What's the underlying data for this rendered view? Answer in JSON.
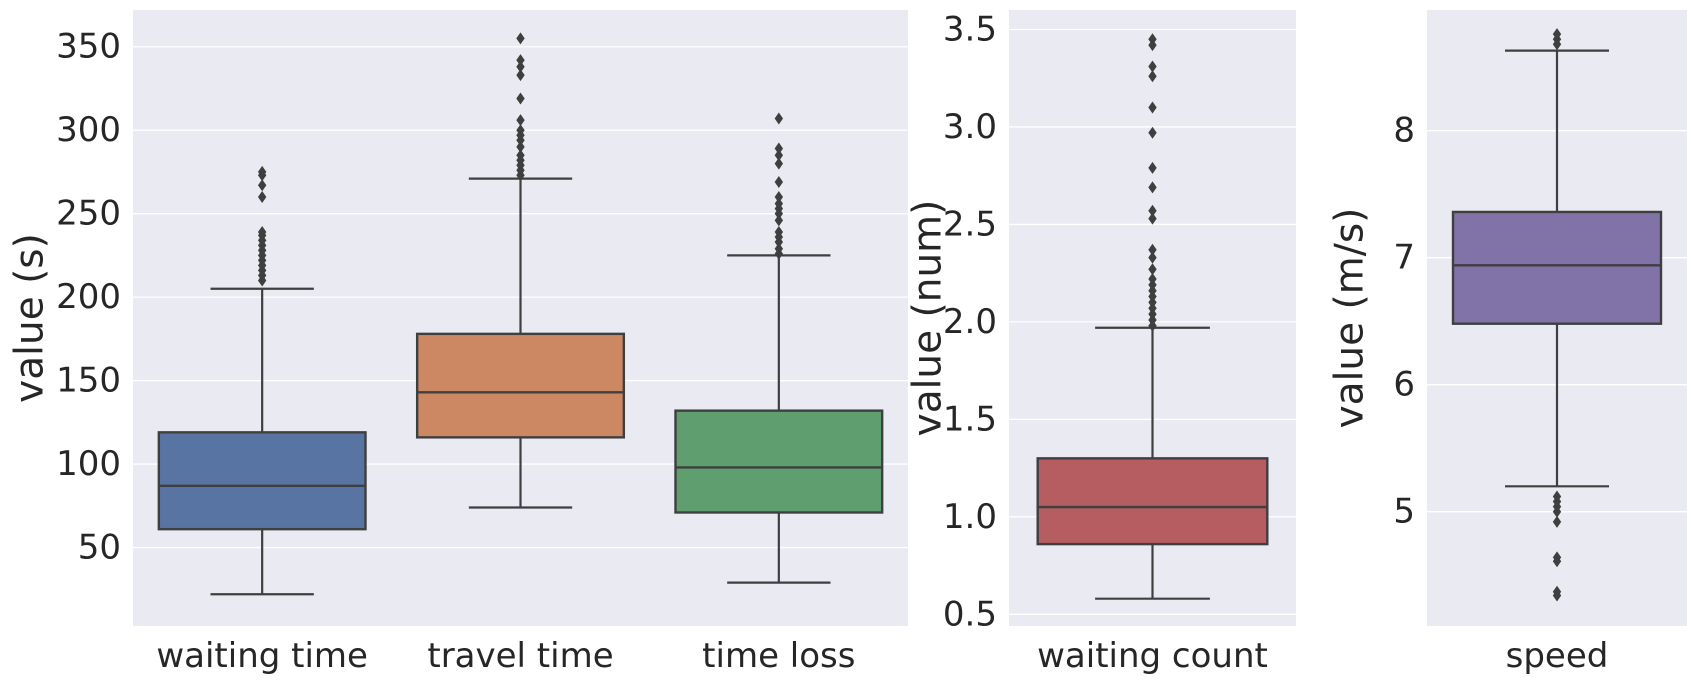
{
  "chart_data": [
    {
      "type": "box",
      "ylabel": "value (s)",
      "ylim": [
        3,
        372
      ],
      "yticks": [
        50,
        100,
        150,
        200,
        250,
        300,
        350
      ],
      "categories": [
        "waiting time",
        "travel time",
        "time loss"
      ],
      "grid": true,
      "boxes": [
        {
          "name": "waiting time",
          "color": "#5874a3",
          "whisker_low": 22,
          "q1": 61,
          "median": 87,
          "q3": 119,
          "whisker_high": 205,
          "outliers": [
            210,
            213,
            216,
            219,
            222,
            225,
            228,
            231,
            234,
            237,
            239,
            260,
            267,
            273,
            275
          ]
        },
        {
          "name": "travel time",
          "color": "#cc8763",
          "whisker_low": 74,
          "q1": 116,
          "median": 143,
          "q3": 178,
          "whisker_high": 271,
          "outliers": [
            273,
            276,
            279,
            282,
            285,
            290,
            294,
            297,
            300,
            306,
            319,
            333,
            338,
            342,
            355
          ]
        },
        {
          "name": "time loss",
          "color": "#5f9e6e",
          "whisker_low": 29,
          "q1": 71,
          "median": 98,
          "q3": 132,
          "whisker_high": 225,
          "outliers": [
            226,
            229,
            233,
            236,
            239,
            246,
            250,
            253,
            256,
            260,
            269,
            280,
            285,
            289,
            307
          ]
        }
      ]
    },
    {
      "type": "box",
      "ylabel": "value (num)",
      "ylim": [
        0.44,
        3.6
      ],
      "yticks": [
        "0.5",
        "1.0",
        "1.5",
        "2.0",
        "2.5",
        "3.0",
        "3.5"
      ],
      "categories": [
        "waiting count"
      ],
      "grid": true,
      "boxes": [
        {
          "name": "waiting count",
          "color": "#b55d60",
          "whisker_low": 0.58,
          "q1": 0.86,
          "median": 1.05,
          "q3": 1.3,
          "whisker_high": 1.97,
          "outliers": [
            1.98,
            2.01,
            2.04,
            2.07,
            2.1,
            2.13,
            2.16,
            2.19,
            2.22,
            2.27,
            2.33,
            2.37,
            2.53,
            2.57,
            2.69,
            2.79,
            2.97,
            3.1,
            3.26,
            3.31,
            3.42,
            3.45
          ]
        }
      ]
    },
    {
      "type": "box",
      "ylabel": "value (m/s)",
      "ylim": [
        4.1,
        8.95
      ],
      "yticks": [
        5,
        6,
        7,
        8
      ],
      "categories": [
        "speed"
      ],
      "grid": true,
      "boxes": [
        {
          "name": "speed",
          "color": "#8172a8",
          "whisker_low": 5.2,
          "q1": 6.48,
          "median": 6.94,
          "q3": 7.36,
          "whisker_high": 8.63,
          "outliers": [
            5.12,
            5.08,
            5.04,
            5.0,
            4.92,
            4.64,
            4.61,
            4.37,
            4.34,
            8.68,
            8.72,
            8.76
          ]
        }
      ]
    }
  ]
}
